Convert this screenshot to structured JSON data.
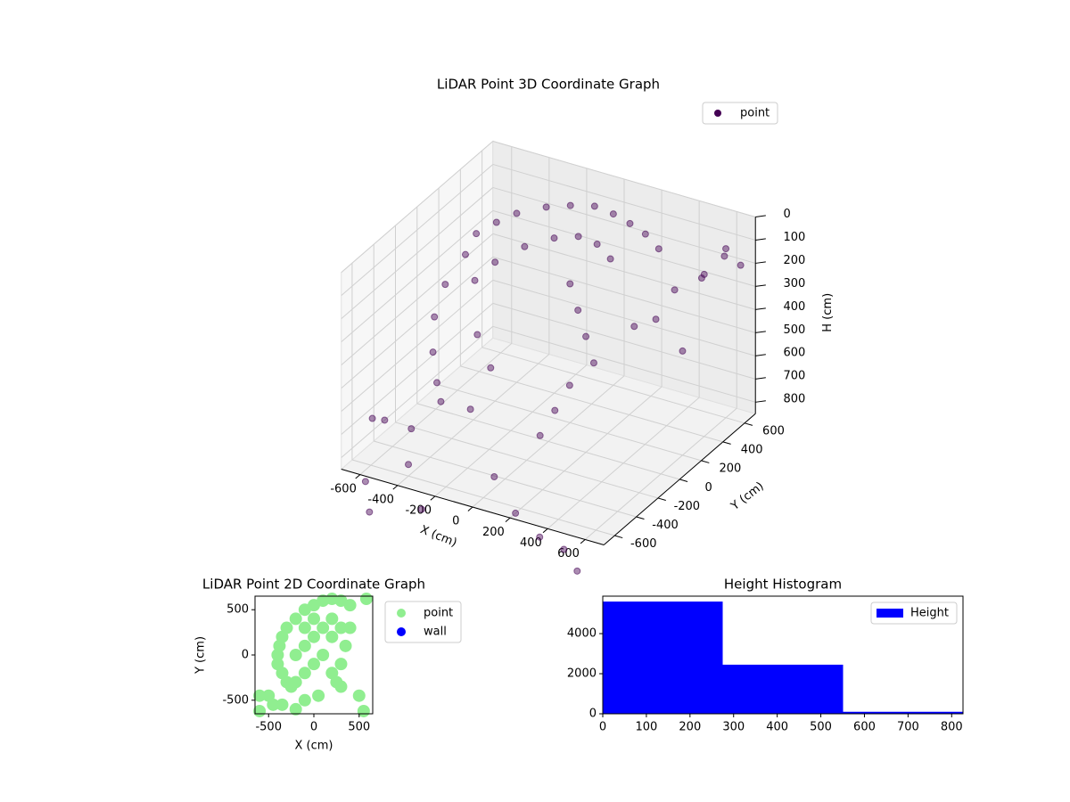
{
  "chart_data": [
    {
      "type": "scatter3d",
      "title": "LiDAR Point 3D Coordinate Graph",
      "x_label": "X (cm)",
      "y_label": "Y (cm)",
      "z_label": "H (cm)",
      "xlim": [
        -700,
        700
      ],
      "ylim": [
        -700,
        700
      ],
      "zlim": [
        850,
        0
      ],
      "xticks": [
        -600,
        -400,
        -200,
        0,
        200,
        400,
        600
      ],
      "yticks": [
        -600,
        -400,
        -200,
        0,
        200,
        400,
        600
      ],
      "zticks": [
        0,
        100,
        200,
        300,
        400,
        500,
        600,
        700,
        800
      ],
      "grid": true,
      "legend": "upper right",
      "series": [
        {
          "name": "point",
          "color": "#440154",
          "x": [
            -500,
            -500,
            -450,
            -400,
            -300,
            -200,
            -100,
            0,
            100,
            200,
            300,
            -550,
            -550,
            -500,
            -450,
            -400,
            -450,
            -400,
            -300,
            -200,
            -100,
            0,
            100,
            0,
            100,
            200,
            300,
            200,
            150,
            100,
            -350,
            -250,
            -300,
            400,
            500,
            600,
            650,
            600,
            650,
            500,
            400,
            600,
            -700,
            -650,
            -500,
            -400,
            0,
            200,
            -600,
            -300,
            300,
            -550,
            400,
            500
          ],
          "y": [
            100,
            200,
            300,
            400,
            500,
            550,
            600,
            600,
            580,
            550,
            500,
            0,
            -100,
            -200,
            -250,
            -300,
            100,
            200,
            300,
            400,
            450,
            450,
            400,
            200,
            100,
            0,
            -100,
            -150,
            -200,
            -250,
            -50,
            -100,
            -200,
            100,
            300,
            400,
            500,
            600,
            650,
            550,
            300,
            200,
            -300,
            -500,
            -400,
            -600,
            -500,
            -650,
            -650,
            -650,
            -600,
            -700,
            -550,
            -600
          ],
          "z": [
            200,
            150,
            130,
            120,
            110,
            100,
            100,
            110,
            120,
            130,
            150,
            300,
            400,
            500,
            600,
            650,
            300,
            250,
            200,
            180,
            170,
            180,
            200,
            250,
            300,
            350,
            400,
            500,
            600,
            700,
            450,
            550,
            700,
            300,
            200,
            150,
            100,
            120,
            200,
            250,
            350,
            400,
            800,
            700,
            750,
            800,
            800,
            850,
            900,
            950,
            950,
            1000,
            1000,
            1050
          ]
        }
      ]
    },
    {
      "type": "scatter",
      "title": "LiDAR Point 2D Coordinate Graph",
      "x_label": "X (cm)",
      "y_label": "Y (cm)",
      "xlim": [
        -650,
        650
      ],
      "ylim": [
        -650,
        650
      ],
      "xticks": [
        -500,
        0,
        500
      ],
      "yticks": [
        -500,
        0,
        500
      ],
      "legend": "outside right",
      "series": [
        {
          "name": "point",
          "color": "#90ee90",
          "x": [
            -300,
            -200,
            -100,
            0,
            100,
            200,
            300,
            400,
            -350,
            -380,
            -400,
            -400,
            -350,
            -300,
            -250,
            -200,
            -100,
            -200,
            -100,
            0,
            100,
            200,
            300,
            350,
            300,
            200,
            250,
            300,
            100,
            0,
            -100,
            0,
            200,
            400,
            -500,
            -600,
            -450,
            -350,
            -600,
            550,
            500,
            -200,
            -100,
            50,
            580
          ],
          "y": [
            300,
            400,
            500,
            550,
            600,
            620,
            600,
            550,
            200,
            100,
            0,
            -100,
            -200,
            -300,
            -350,
            -300,
            -200,
            0,
            100,
            200,
            300,
            400,
            300,
            100,
            -100,
            -200,
            -300,
            -350,
            0,
            -100,
            300,
            400,
            200,
            300,
            -450,
            -450,
            -550,
            -550,
            -620,
            -620,
            -450,
            -600,
            -500,
            -450,
            620
          ]
        },
        {
          "name": "wall",
          "color": "#0000ff",
          "x": [],
          "y": []
        }
      ]
    },
    {
      "type": "histogram",
      "title": "Height Histogram",
      "bins": [
        0,
        275,
        551,
        826
      ],
      "counts": [
        5600,
        2450,
        100
      ],
      "color": "#0000ff",
      "xlim": [
        0,
        826
      ],
      "ylim": [
        0,
        5870
      ],
      "xticks": [
        0,
        100,
        200,
        300,
        400,
        500,
        600,
        700,
        800
      ],
      "yticks": [
        0,
        2000,
        4000
      ],
      "legend": "upper right",
      "legend_label": "Height"
    }
  ]
}
